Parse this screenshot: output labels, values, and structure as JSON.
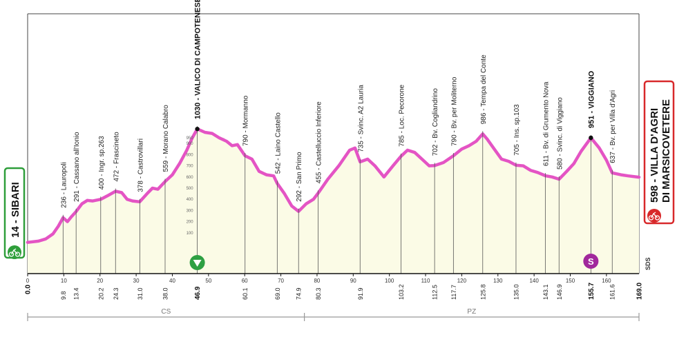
{
  "chart_data": {
    "type": "area",
    "title": "",
    "xlabel": "",
    "ylabel": "",
    "xlim": [
      0,
      169
    ],
    "ylim": [
      0,
      1050
    ],
    "x_ticks": [
      0,
      10,
      20,
      30,
      40,
      50,
      60,
      70,
      80,
      90,
      100,
      110,
      120,
      130,
      140,
      150,
      160
    ],
    "elevation_scale": [
      "100",
      "200",
      "300",
      "400",
      "500",
      "600",
      "700",
      "800",
      "900",
      "950"
    ],
    "profile": [
      {
        "x": 0,
        "y": 14
      },
      {
        "x": 3,
        "y": 25
      },
      {
        "x": 5,
        "y": 45
      },
      {
        "x": 7,
        "y": 90
      },
      {
        "x": 8.5,
        "y": 160
      },
      {
        "x": 9.8,
        "y": 236
      },
      {
        "x": 11,
        "y": 200
      },
      {
        "x": 12,
        "y": 240
      },
      {
        "x": 13.4,
        "y": 291
      },
      {
        "x": 15,
        "y": 360
      },
      {
        "x": 16.5,
        "y": 390
      },
      {
        "x": 18,
        "y": 385
      },
      {
        "x": 20.2,
        "y": 400
      },
      {
        "x": 22,
        "y": 430
      },
      {
        "x": 24.3,
        "y": 472
      },
      {
        "x": 26,
        "y": 460
      },
      {
        "x": 27.5,
        "y": 400
      },
      {
        "x": 29,
        "y": 385
      },
      {
        "x": 31,
        "y": 378
      },
      {
        "x": 33,
        "y": 450
      },
      {
        "x": 34.5,
        "y": 500
      },
      {
        "x": 36,
        "y": 490
      },
      {
        "x": 38,
        "y": 559
      },
      {
        "x": 40,
        "y": 620
      },
      {
        "x": 42,
        "y": 720
      },
      {
        "x": 44,
        "y": 840
      },
      {
        "x": 45.5,
        "y": 950
      },
      {
        "x": 46.9,
        "y": 1030
      },
      {
        "x": 49,
        "y": 1000
      },
      {
        "x": 51,
        "y": 990
      },
      {
        "x": 53,
        "y": 950
      },
      {
        "x": 55,
        "y": 920
      },
      {
        "x": 56.5,
        "y": 880
      },
      {
        "x": 58,
        "y": 890
      },
      {
        "x": 60.1,
        "y": 790
      },
      {
        "x": 62,
        "y": 760
      },
      {
        "x": 64,
        "y": 650
      },
      {
        "x": 66,
        "y": 620
      },
      {
        "x": 68,
        "y": 610
      },
      {
        "x": 69,
        "y": 542
      },
      {
        "x": 71,
        "y": 450
      },
      {
        "x": 73,
        "y": 340
      },
      {
        "x": 74.9,
        "y": 292
      },
      {
        "x": 77,
        "y": 360
      },
      {
        "x": 79,
        "y": 400
      },
      {
        "x": 80.3,
        "y": 455
      },
      {
        "x": 83,
        "y": 580
      },
      {
        "x": 86,
        "y": 700
      },
      {
        "x": 89,
        "y": 840
      },
      {
        "x": 90.5,
        "y": 860
      },
      {
        "x": 91.9,
        "y": 735
      },
      {
        "x": 94,
        "y": 760
      },
      {
        "x": 96,
        "y": 700
      },
      {
        "x": 98.5,
        "y": 600
      },
      {
        "x": 101,
        "y": 700
      },
      {
        "x": 103.2,
        "y": 785
      },
      {
        "x": 105,
        "y": 840
      },
      {
        "x": 107,
        "y": 820
      },
      {
        "x": 109,
        "y": 760
      },
      {
        "x": 111,
        "y": 700
      },
      {
        "x": 112.5,
        "y": 702
      },
      {
        "x": 115,
        "y": 730
      },
      {
        "x": 117.7,
        "y": 790
      },
      {
        "x": 120,
        "y": 850
      },
      {
        "x": 122,
        "y": 880
      },
      {
        "x": 124,
        "y": 920
      },
      {
        "x": 125.8,
        "y": 986
      },
      {
        "x": 127,
        "y": 940
      },
      {
        "x": 129,
        "y": 850
      },
      {
        "x": 131,
        "y": 760
      },
      {
        "x": 133,
        "y": 740
      },
      {
        "x": 135,
        "y": 705
      },
      {
        "x": 137,
        "y": 700
      },
      {
        "x": 139,
        "y": 660
      },
      {
        "x": 141,
        "y": 640
      },
      {
        "x": 143.1,
        "y": 611
      },
      {
        "x": 145,
        "y": 600
      },
      {
        "x": 146.9,
        "y": 580
      },
      {
        "x": 149,
        "y": 650
      },
      {
        "x": 151,
        "y": 720
      },
      {
        "x": 153,
        "y": 830
      },
      {
        "x": 155.7,
        "y": 951
      },
      {
        "x": 158,
        "y": 860
      },
      {
        "x": 160,
        "y": 750
      },
      {
        "x": 161.6,
        "y": 637
      },
      {
        "x": 164,
        "y": 620
      },
      {
        "x": 166,
        "y": 610
      },
      {
        "x": 169,
        "y": 598
      }
    ],
    "waypoints": [
      {
        "km": "9.8",
        "x": 9.8,
        "alt": 236,
        "label": "236 - Lauropoli"
      },
      {
        "km": "13.4",
        "x": 13.4,
        "alt": 291,
        "label": "291 - Cassano all'Ionio"
      },
      {
        "km": "20.2",
        "x": 20.2,
        "alt": 400,
        "label": "400 - Ingr. sp.263"
      },
      {
        "km": "24.3",
        "x": 24.3,
        "alt": 472,
        "label": "472 - Frascineto"
      },
      {
        "km": "31.0",
        "x": 31.0,
        "alt": 378,
        "label": "378 - Castrovillari"
      },
      {
        "km": "38.0",
        "x": 38.0,
        "alt": 559,
        "label": "559 - Morano Calabro"
      },
      {
        "km": "46.9",
        "x": 46.9,
        "alt": 1030,
        "label": "1030 - VALICO DI CAMPOTENESE",
        "bold": true
      },
      {
        "km": "60.1",
        "x": 60.1,
        "alt": 790,
        "label": "790 - Mormanno"
      },
      {
        "km": "69.0",
        "x": 69.0,
        "alt": 542,
        "label": "542 - Laino Castello"
      },
      {
        "km": "74.9",
        "x": 74.9,
        "alt": 292,
        "label": "292 - San Primo"
      },
      {
        "km": "80.3",
        "x": 80.3,
        "alt": 455,
        "label": "455 - Castelluccio Inferiore"
      },
      {
        "km": "91.9",
        "x": 91.9,
        "alt": 735,
        "label": "735 - Svinc. A2 Lauria"
      },
      {
        "km": "103.2",
        "x": 103.2,
        "alt": 785,
        "label": "785 - Loc. Pecorone"
      },
      {
        "km": "112.5",
        "x": 112.5,
        "alt": 702,
        "label": "702 - Bv. Cogliandrino"
      },
      {
        "km": "117.7",
        "x": 117.7,
        "alt": 790,
        "label": "790 - Bv. per Moliterno"
      },
      {
        "km": "125.8",
        "x": 125.8,
        "alt": 986,
        "label": "986 - Tempa del Conte"
      },
      {
        "km": "135.0",
        "x": 135.0,
        "alt": 705,
        "label": "705 - Ins. sp.103"
      },
      {
        "km": "143.1",
        "x": 143.1,
        "alt": 611,
        "label": "611 - Bv. di Grumento Nova"
      },
      {
        "km": "146.9",
        "x": 146.9,
        "alt": 580,
        "label": "580 - Svinc. di Viggiano"
      },
      {
        "km": "155.7",
        "x": 155.7,
        "alt": 951,
        "label": "951 - VIGGIANO",
        "bold": true
      },
      {
        "km": "161.6",
        "x": 161.6,
        "alt": 637,
        "label": "637 - Bv. per Villa d'Agri"
      }
    ],
    "start": {
      "km": "0.0",
      "label": "14 - SIBARI"
    },
    "finish": {
      "km": "169.0",
      "label_line1": "598 - VILLA D'AGRI",
      "label_line2": "DI MARSICOVETERE"
    },
    "provinces": [
      {
        "name": "CS",
        "from": 0,
        "to": 76.5
      },
      {
        "name": "PZ",
        "from": 76.5,
        "to": 169
      }
    ],
    "markers": {
      "gpm_km": 46.9,
      "sprint_km": 155.7,
      "sprint_letter": "S"
    },
    "corner_text": "SDS"
  },
  "colors": {
    "profile_line": "#e454c4",
    "fill": "#fbfbe6",
    "start_border": "#2e9e3a",
    "finish_border": "#d8282a",
    "gpm": "#2ea043",
    "sprint": "#a1289c"
  },
  "icons": {
    "start": "cyclist-icon",
    "finish": "cyclist-icon",
    "gpm": "mountain-triangle-icon",
    "sprint": "sprint-badge-icon"
  }
}
